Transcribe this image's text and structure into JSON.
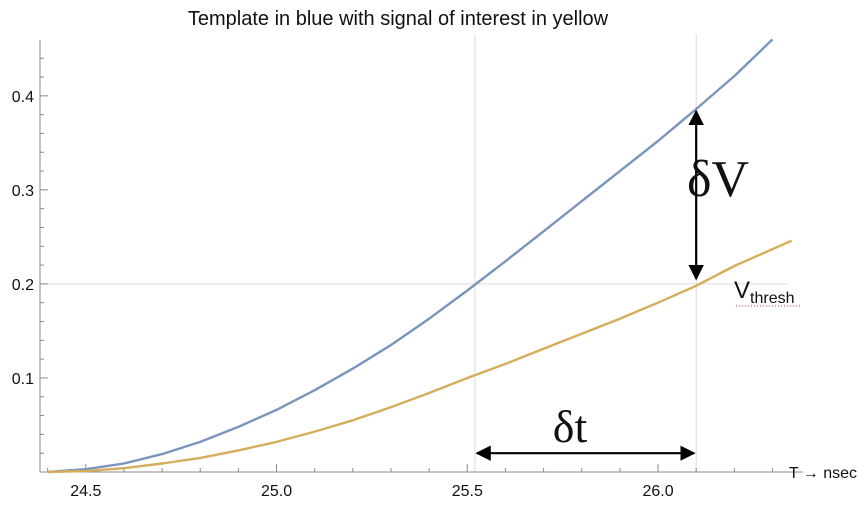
{
  "chart_data": {
    "type": "line",
    "title": "Template in blue with signal of interest in yellow",
    "xlabel": "T → nsec",
    "ylabel": "",
    "xlim": [
      24.38,
      26.38
    ],
    "ylim": [
      0,
      0.47
    ],
    "x_ticks": [
      24.5,
      25.0,
      25.5,
      26.0
    ],
    "x_tick_labels": [
      "24.5",
      "25.0",
      "25.5",
      "26.0"
    ],
    "y_ticks": [
      0.1,
      0.2,
      0.3,
      0.4
    ],
    "y_tick_labels": [
      "0.1",
      "0.2",
      "0.3",
      "0.4"
    ],
    "grid_x": [
      25.52,
      26.1
    ],
    "grid_y": [
      0.2
    ],
    "series": [
      {
        "color": "#7a94bd",
        "x": [
          24.4,
          24.5,
          24.6,
          24.7,
          24.8,
          24.9,
          25.0,
          25.1,
          25.2,
          25.3,
          25.4,
          25.5,
          25.6,
          25.7,
          25.8,
          25.9,
          26.0,
          26.1,
          26.2,
          26.3
        ],
        "y": [
          0.0,
          0.003,
          0.009,
          0.019,
          0.032,
          0.048,
          0.066,
          0.087,
          0.11,
          0.135,
          0.163,
          0.193,
          0.224,
          0.256,
          0.288,
          0.32,
          0.352,
          0.386,
          0.421,
          0.46
        ]
      },
      {
        "color": "#d6ad5a",
        "x": [
          24.4,
          24.5,
          24.6,
          24.7,
          24.8,
          24.9,
          25.0,
          25.1,
          25.2,
          25.3,
          25.4,
          25.5,
          25.6,
          25.7,
          25.8,
          25.9,
          26.0,
          26.1,
          26.2,
          26.35
        ],
        "y": [
          0.0,
          0.001,
          0.004,
          0.009,
          0.015,
          0.023,
          0.032,
          0.043,
          0.055,
          0.069,
          0.084,
          0.1,
          0.115,
          0.131,
          0.147,
          0.163,
          0.18,
          0.198,
          0.219,
          0.246
        ]
      }
    ],
    "annotations": {
      "delta_v": {
        "label": "δV",
        "x": 26.1,
        "y_from": 0.388,
        "y_to": 0.2
      },
      "delta_t": {
        "label": "δt",
        "y": 0.02,
        "x_from": 25.52,
        "x_to": 26.1
      },
      "threshold": {
        "label_main": "V",
        "label_sub": "thresh",
        "x": 26.2,
        "y": 0.2
      }
    }
  }
}
